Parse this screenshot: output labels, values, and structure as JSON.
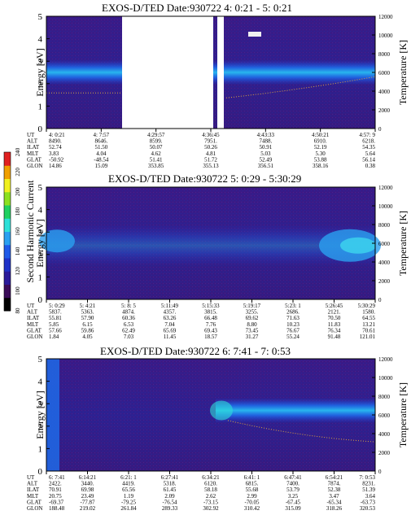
{
  "colorbar": {
    "label": "Second Harmonic Current",
    "ticks": [
      "80",
      "100",
      "120",
      "140",
      "160",
      "180",
      "200",
      "220",
      "240"
    ],
    "colors": [
      "#000000",
      "#3a0b58",
      "#2a1a9a",
      "#1e32c8",
      "#1f5ae8",
      "#2aa0f0",
      "#2ee0d8",
      "#20d060",
      "#8ce020",
      "#f0f020",
      "#f0a000",
      "#e02020"
    ]
  },
  "labels": {
    "energy_axis": "Energy [eV]",
    "temperature_axis": "Temperature [K]",
    "energy_ticks": [
      "0",
      "1",
      "2",
      "3",
      "4",
      "5"
    ],
    "temp_ticks": [
      "0",
      "2000",
      "4000",
      "6000",
      "8000",
      "10000",
      "12000"
    ],
    "orbit_row_names": [
      "UT",
      "ALT",
      "ILAT",
      "MLT",
      "GLAT",
      "GLON"
    ]
  },
  "chart_data": [
    {
      "type": "heatmap",
      "title": "EXOS-D/TED   Date:930722  4: 0:21 - 5: 0:21",
      "xlabel": "",
      "ylabel": "Energy [eV]",
      "y2label": "Temperature [K]",
      "ylim": [
        0,
        5
      ],
      "y2lim": [
        0,
        12000
      ],
      "band_center_ev": 2.5,
      "temperature_trace_k": 3800,
      "orbit_columns": [
        {
          "UT": "4: 0:21",
          "ALT": "8490.",
          "ILAT": "52.74",
          "MLT": "3.83",
          "GLAT": "-50.92",
          "GLON": "14.86"
        },
        {
          "UT": "4: 7:57",
          "ALT": "8646.",
          "ILAT": "51.50",
          "MLT": "4.04",
          "GLAT": "-48.54",
          "GLON": "15.09"
        },
        {
          "UT": "4:29:57",
          "ALT": "8599.",
          "ILAT": "50.07",
          "MLT": "4.62",
          "GLAT": "51.41",
          "GLON": "353.85"
        },
        {
          "UT": "4:36:45",
          "ALT": "7951.",
          "ILAT": "50.26",
          "MLT": "4.81",
          "GLAT": "51.72",
          "GLON": "355.13"
        },
        {
          "UT": "4:43:33",
          "ALT": "7488.",
          "ILAT": "50.91",
          "MLT": "5.03",
          "GLAT": "52.49",
          "GLON": "356.51"
        },
        {
          "UT": "4:50:21",
          "ALT": "6910.",
          "ILAT": "52.19",
          "MLT": "5.30",
          "GLAT": "53.88",
          "GLON": "358.16"
        },
        {
          "UT": "4:57: 9",
          "ALT": "6218.",
          "ILAT": "54.35",
          "MLT": "5.64",
          "GLAT": "56.14",
          "GLON": "0.38"
        }
      ]
    },
    {
      "type": "heatmap",
      "title": "EXOS-D/TED    Date:930722  5: 0:29 - 5:30:29",
      "xlabel": "",
      "ylabel": "Energy [eV]",
      "y2label": "Temperature [K]",
      "ylim": [
        0,
        5
      ],
      "y2lim": [
        0,
        12000
      ],
      "band_center_ev": 2.4,
      "orbit_columns": [
        {
          "UT": "5: 0:29",
          "ALT": "5837.",
          "ILAT": "55.81",
          "MLT": "5.85",
          "GLAT": "57.66",
          "GLON": "1.84"
        },
        {
          "UT": "5: 4:21",
          "ALT": "5363.",
          "ILAT": "57.90",
          "MLT": "6.15",
          "GLAT": "59.86",
          "GLON": "4.05"
        },
        {
          "UT": "5: 8: 5",
          "ALT": "4874.",
          "ILAT": "60.36",
          "MLT": "6.53",
          "GLAT": "62.49",
          "GLON": "7.03"
        },
        {
          "UT": "5:11:49",
          "ALT": "4357.",
          "ILAT": "63.26",
          "MLT": "7.04",
          "GLAT": "65.69",
          "GLON": "11.45"
        },
        {
          "UT": "5:15:33",
          "ALT": "3815.",
          "ILAT": "66.48",
          "MLT": "7.76",
          "GLAT": "69.43",
          "GLON": "18.57"
        },
        {
          "UT": "5:19:17",
          "ALT": "3255.",
          "ILAT": "69.62",
          "MLT": "8.80",
          "GLAT": "73.45",
          "GLON": "31.27"
        },
        {
          "UT": "5:23: 1",
          "ALT": "2686.",
          "ILAT": "71.63",
          "MLT": "10.23",
          "GLAT": "76.67",
          "GLON": "55.24"
        },
        {
          "UT": "5:26:45",
          "ALT": "2121.",
          "ILAT": "70.50",
          "MLT": "11.83",
          "GLAT": "76.34",
          "GLON": "91.48"
        },
        {
          "UT": "5:30:29",
          "ALT": "1580.",
          "ILAT": "64.55",
          "MLT": "13.21",
          "GLAT": "70.61",
          "GLON": "121.01"
        }
      ]
    },
    {
      "type": "heatmap",
      "title": "EXOS-D/TED   Date:930722  6: 7:41 - 7: 0:53",
      "xlabel": "",
      "ylabel": "Energy [eV]",
      "y2label": "Temperature [K]",
      "ylim": [
        0,
        5
      ],
      "y2lim": [
        0,
        12000
      ],
      "band_center_ev": 2.7,
      "orbit_columns": [
        {
          "UT": "6: 7:41",
          "ALT": "2422.",
          "ILAT": "70.91",
          "MLT": "20.75",
          "GLAT": "-69.37",
          "GLON": "188.48"
        },
        {
          "UT": "6:14:21",
          "ALT": "3440.",
          "ILAT": "69.98",
          "MLT": "23.49",
          "GLAT": "-77.87",
          "GLON": "219.02"
        },
        {
          "UT": "6:21: 1",
          "ALT": "4419.",
          "ILAT": "65.56",
          "MLT": "1.19",
          "GLAT": "-79.25",
          "GLON": "261.84"
        },
        {
          "UT": "6:27:41",
          "ALT": "5318.",
          "ILAT": "61.45",
          "MLT": "2.09",
          "GLAT": "-76.54",
          "GLON": "289.33"
        },
        {
          "UT": "6:34:21",
          "ALT": "6120.",
          "ILAT": "58.18",
          "MLT": "2.62",
          "GLAT": "-73.15",
          "GLON": "302.92"
        },
        {
          "UT": "6:41: 1",
          "ALT": "6815.",
          "ILAT": "55.68",
          "MLT": "2.99",
          "GLAT": "-70.05",
          "GLON": "310.42"
        },
        {
          "UT": "6:47:41",
          "ALT": "7400.",
          "ILAT": "53.79",
          "MLT": "3.25",
          "GLAT": "-67.45",
          "GLON": "315.09"
        },
        {
          "UT": "6:54:21",
          "ALT": "7874.",
          "ILAT": "52.38",
          "MLT": "3.47",
          "GLAT": "-65.34",
          "GLON": "318.26"
        },
        {
          "UT": "7: 0:53",
          "ALT": "8231.",
          "ILAT": "51.39",
          "MLT": "3.64",
          "GLAT": "-63.73",
          "GLON": "320.53"
        }
      ]
    }
  ]
}
